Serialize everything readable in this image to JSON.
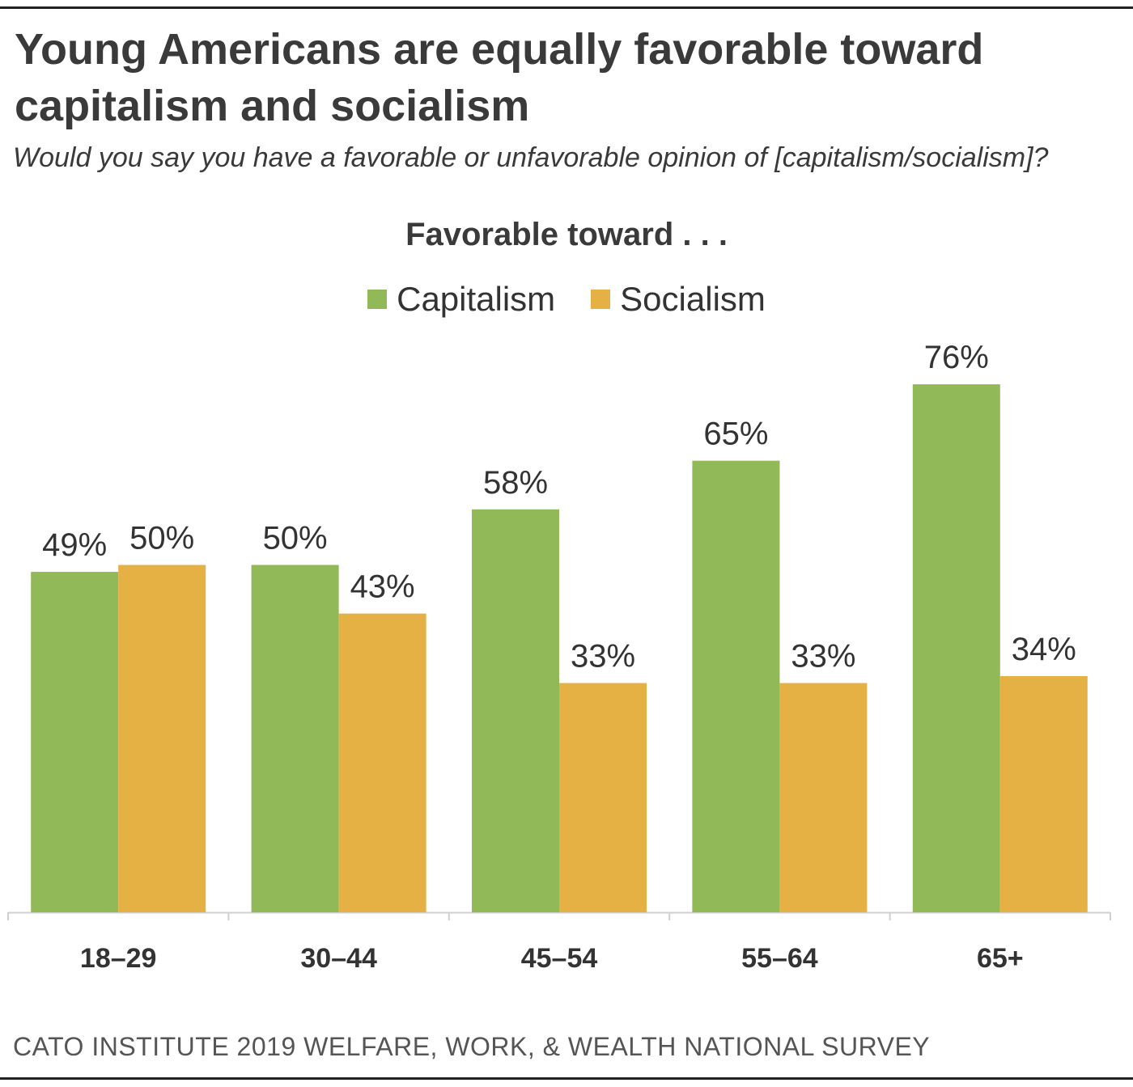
{
  "title": "Young Americans are equally favorable toward capitalism and socialism",
  "subtitle": "Would you say you have a favorable or unfavorable opinion of [capitalism/socialism]?",
  "source": "CATO INSTITUTE 2019 WELFARE, WORK, & WEALTH NATIONAL SURVEY",
  "chart_data": {
    "type": "bar",
    "title": "Favorable toward . . .",
    "categories": [
      "18–29",
      "30–44",
      "45–54",
      "55–64",
      "65+"
    ],
    "series": [
      {
        "name": "Capitalism",
        "color": "#92b957",
        "values": [
          49,
          50,
          58,
          65,
          76
        ],
        "labels": [
          "49%",
          "50%",
          "58%",
          "65%",
          "76%"
        ]
      },
      {
        "name": "Socialism",
        "color": "#e6b144",
        "values": [
          50,
          43,
          33,
          33,
          34
        ],
        "labels": [
          "50%",
          "43%",
          "33%",
          "33%",
          "34%"
        ]
      }
    ],
    "ylim": [
      0,
      100
    ],
    "grid": false,
    "legend": "top-center",
    "xlabel": "",
    "ylabel": ""
  }
}
